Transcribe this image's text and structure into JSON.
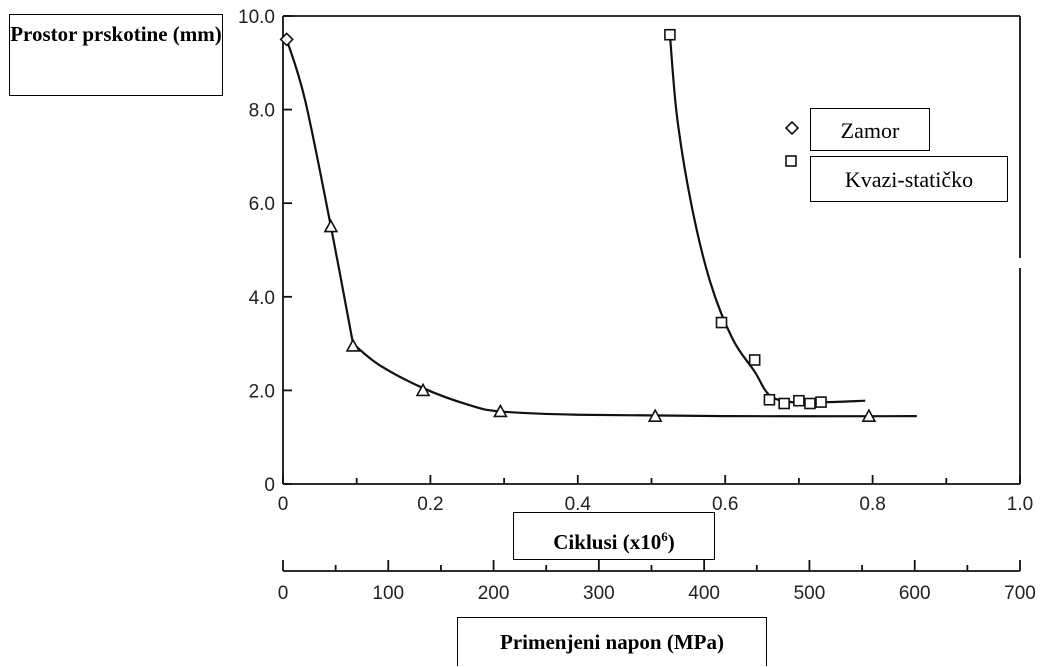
{
  "chart_data": {
    "type": "line",
    "ylabel": "Prostor prskotine (mm)",
    "xlabel": "Ciklusi (x10",
    "xlabel_sup": "6",
    "xlabel_end": ")",
    "x2label": "Primenjeni napon (MPa)",
    "xlim": [
      0,
      1.0
    ],
    "ylim": [
      0,
      10.0
    ],
    "x2lim": [
      0,
      700
    ],
    "x_ticks": [
      "0",
      "0.2",
      "0.4",
      "0.6",
      "0.8",
      "1.0"
    ],
    "y_ticks": [
      "0",
      "2.0",
      "4.0",
      "6.0",
      "8.0",
      "10.0"
    ],
    "x2_ticks": [
      "0",
      "100",
      "200",
      "300",
      "400",
      "500",
      "600",
      "700"
    ],
    "grid": false,
    "legend_position": "top-right",
    "series": [
      {
        "name": "Zamor",
        "marker": "diamond",
        "points": [
          [
            0.005,
            9.5
          ]
        ],
        "curve": [
          [
            0.005,
            9.5
          ],
          [
            0.03,
            8.2
          ],
          [
            0.065,
            5.5
          ],
          [
            0.095,
            3.0
          ]
        ]
      },
      {
        "name": "Kvazi-statičko",
        "marker": "square",
        "points": [
          [
            0.525,
            9.6
          ],
          [
            0.595,
            3.45
          ],
          [
            0.64,
            2.65
          ],
          [
            0.66,
            1.8
          ],
          [
            0.68,
            1.72
          ],
          [
            0.7,
            1.78
          ],
          [
            0.715,
            1.72
          ],
          [
            0.73,
            1.75
          ]
        ],
        "curve": [
          [
            0.525,
            9.6
          ],
          [
            0.535,
            7.8
          ],
          [
            0.555,
            5.9
          ],
          [
            0.58,
            4.3
          ],
          [
            0.61,
            3.1
          ],
          [
            0.64,
            2.4
          ],
          [
            0.66,
            1.9
          ],
          [
            0.69,
            1.75
          ],
          [
            0.74,
            1.75
          ],
          [
            0.79,
            1.78
          ]
        ]
      },
      {
        "name": "",
        "marker": "triangle",
        "points": [
          [
            0.065,
            5.5
          ],
          [
            0.095,
            2.95
          ],
          [
            0.19,
            2.0
          ],
          [
            0.295,
            1.55
          ],
          [
            0.505,
            1.45
          ],
          [
            0.795,
            1.45
          ]
        ],
        "curve": [
          [
            0.095,
            3.0
          ],
          [
            0.13,
            2.55
          ],
          [
            0.19,
            2.05
          ],
          [
            0.25,
            1.7
          ],
          [
            0.295,
            1.55
          ],
          [
            0.4,
            1.48
          ],
          [
            0.6,
            1.45
          ],
          [
            0.86,
            1.45
          ]
        ]
      }
    ]
  },
  "legend": {
    "items": [
      {
        "label": "Zamor",
        "marker": "diamond"
      },
      {
        "label": "Kvazi-statičko",
        "marker": "square"
      }
    ]
  }
}
